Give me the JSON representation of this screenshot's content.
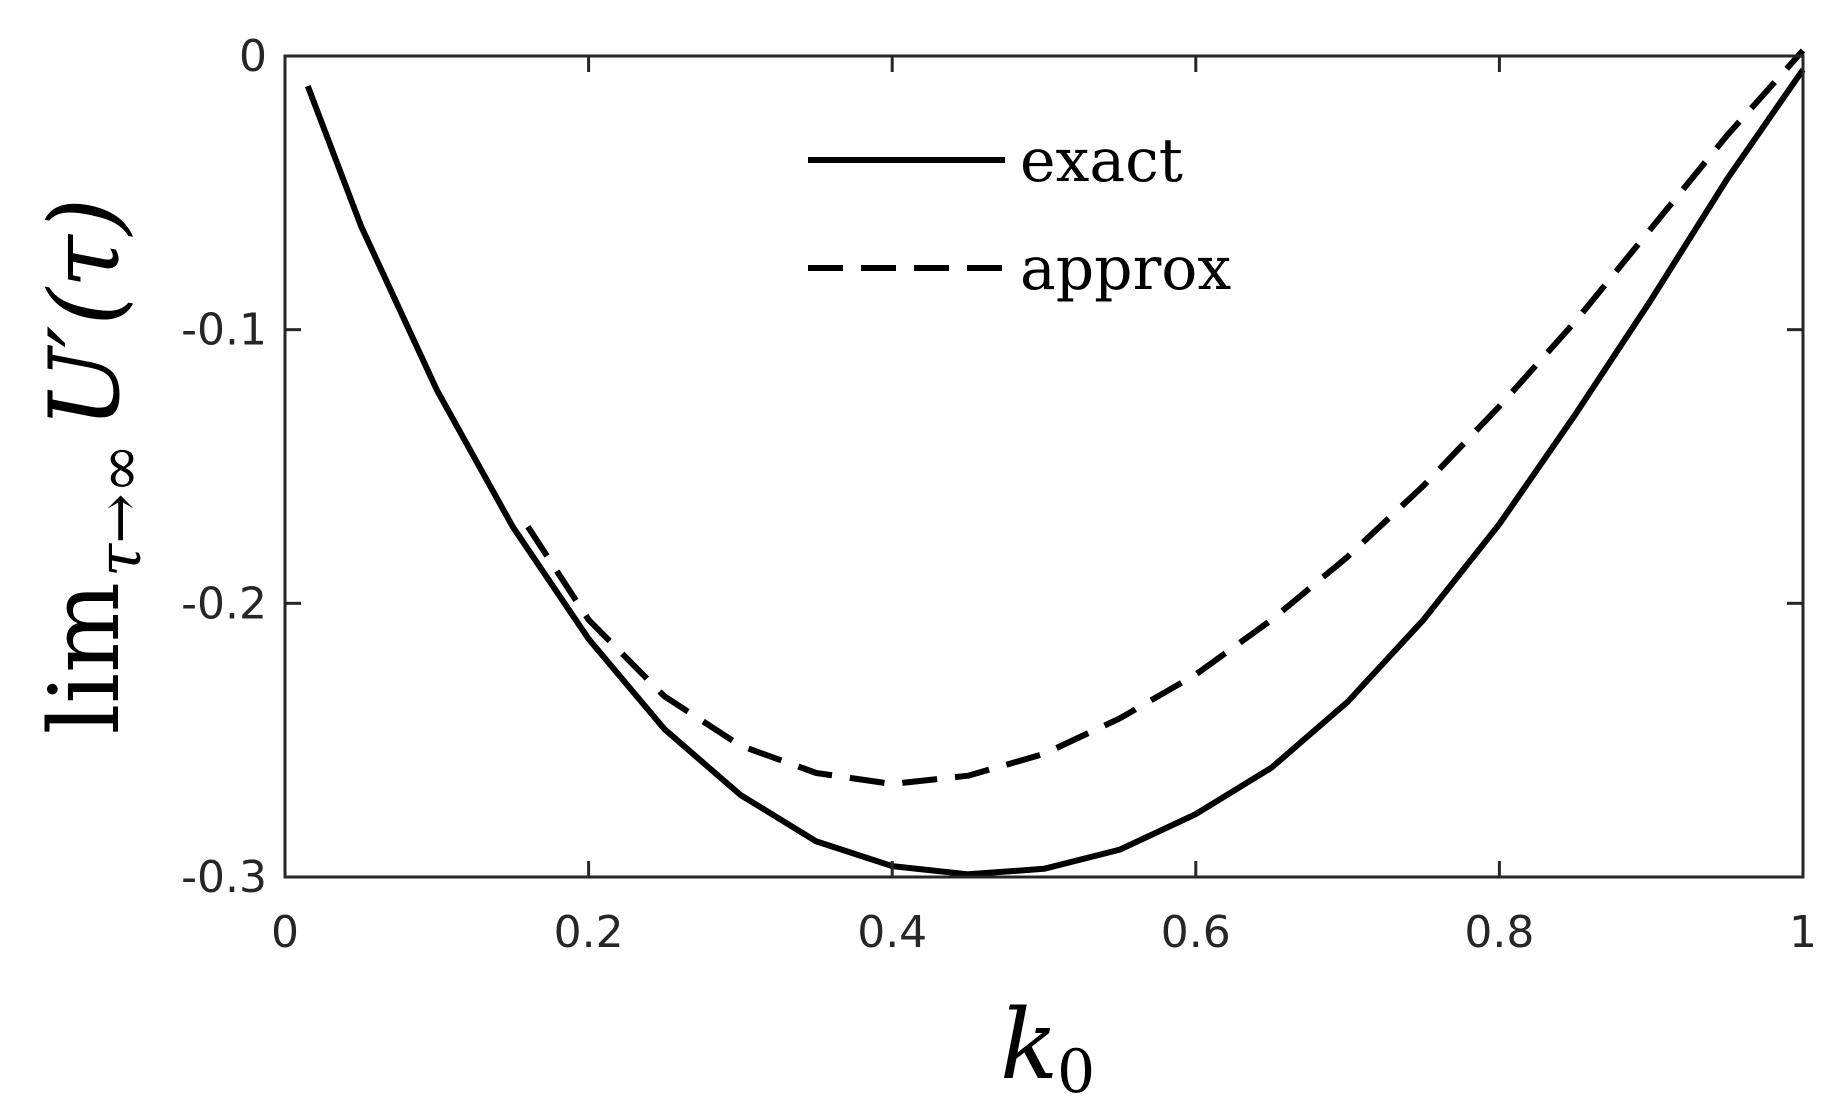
{
  "chart_data": {
    "type": "line",
    "title": "",
    "xlabel": "k0",
    "xlabel_main": "k",
    "xlabel_sub": "0",
    "ylabel_main": "lim",
    "ylabel_sub": "τ→∞",
    "ylabel_func": "U′(τ)",
    "xlim": [
      0,
      1
    ],
    "ylim": [
      -0.3,
      0
    ],
    "grid": false,
    "legend_position": "top-center",
    "x_ticks": [
      0,
      0.2,
      0.4,
      0.6,
      0.8,
      1
    ],
    "x_tick_labels": [
      "0",
      "0.2",
      "0.4",
      "0.6",
      "0.8",
      "1"
    ],
    "y_ticks": [
      0,
      -0.1,
      -0.2,
      -0.3
    ],
    "y_tick_labels": [
      "0",
      "-0.1",
      "-0.2",
      "-0.3"
    ],
    "series": [
      {
        "name": "exact",
        "style": "solid",
        "color": "#000000",
        "x": [
          0.015,
          0.05,
          0.1,
          0.15,
          0.2,
          0.25,
          0.3,
          0.35,
          0.4,
          0.45,
          0.5,
          0.55,
          0.6,
          0.65,
          0.7,
          0.75,
          0.8,
          0.85,
          0.9,
          0.95,
          1.0
        ],
        "y": [
          -0.011,
          -0.062,
          -0.122,
          -0.172,
          -0.213,
          -0.246,
          -0.27,
          -0.287,
          -0.296,
          -0.299,
          -0.297,
          -0.29,
          -0.277,
          -0.26,
          -0.236,
          -0.206,
          -0.171,
          -0.131,
          -0.089,
          -0.045,
          -0.005
        ]
      },
      {
        "name": "approx",
        "style": "dashed",
        "color": "#000000",
        "x": [
          0.16,
          0.2,
          0.25,
          0.3,
          0.35,
          0.4,
          0.45,
          0.5,
          0.55,
          0.6,
          0.65,
          0.7,
          0.75,
          0.8,
          0.85,
          0.9,
          0.95,
          1.0
        ],
        "y": [
          -0.172,
          -0.206,
          -0.234,
          -0.252,
          -0.262,
          -0.266,
          -0.263,
          -0.255,
          -0.242,
          -0.226,
          -0.206,
          -0.183,
          -0.157,
          -0.128,
          -0.097,
          -0.063,
          -0.029,
          0.002
        ]
      }
    ]
  }
}
